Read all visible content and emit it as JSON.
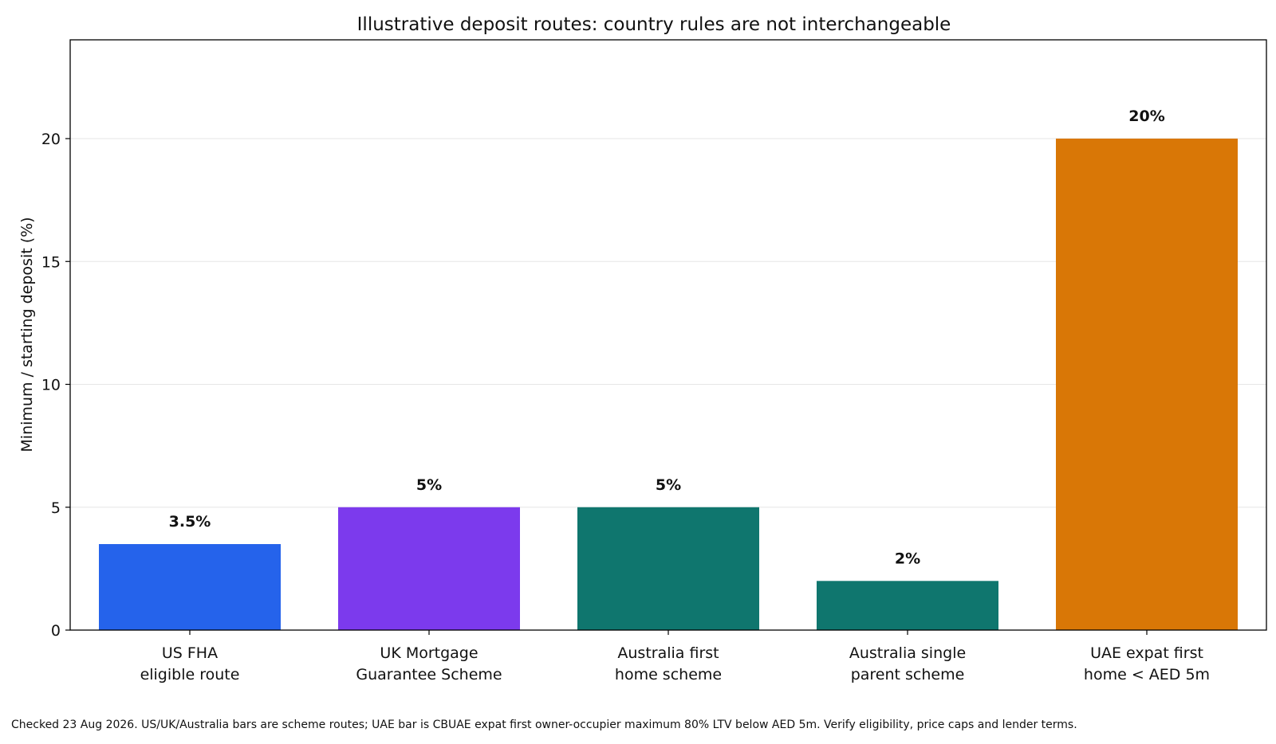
{
  "chart_data": {
    "type": "bar",
    "title": "Illustrative deposit routes: country rules are not interchangeable",
    "xlabel": "",
    "ylabel": "Minimum / starting deposit (%)",
    "ylim": [
      0,
      24
    ],
    "yticks": [
      0,
      5,
      10,
      15,
      20
    ],
    "grid": "horizontal",
    "categories": [
      [
        "US FHA",
        "eligible route"
      ],
      [
        "UK Mortgage",
        "Guarantee Scheme"
      ],
      [
        "Australia first",
        "home scheme"
      ],
      [
        "Australia single",
        "parent scheme"
      ],
      [
        "UAE expat first",
        "home < AED 5m"
      ]
    ],
    "values": [
      3.5,
      5,
      5,
      2,
      20
    ],
    "data_labels": [
      "3.5%",
      "5%",
      "5%",
      "2%",
      "20%"
    ],
    "colors": [
      "#2563EB",
      "#7C3AED",
      "#0F766E",
      "#0F766E",
      "#D97706"
    ]
  },
  "footnote": "Checked 23 Aug 2026. US/UK/Australia bars are scheme routes; UAE bar is CBUAE expat first owner-occupier maximum 80% LTV below AED 5m. Verify eligibility, price caps and lender terms."
}
